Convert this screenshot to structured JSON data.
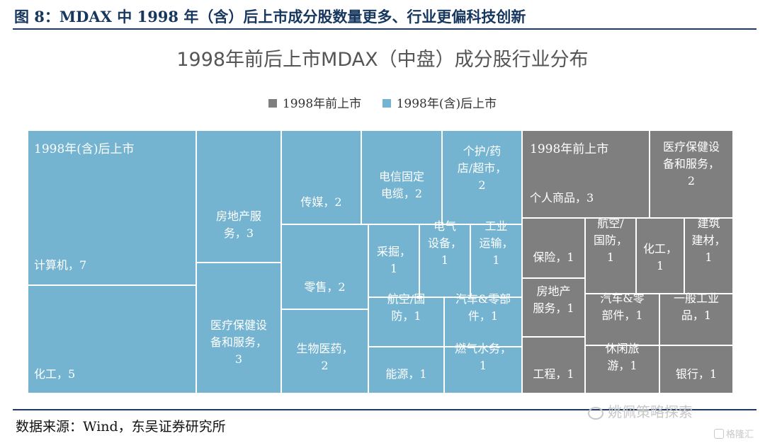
{
  "figure_title": "图 8：MDAX 中 1998 年（含）后上市成分股数量更多、行业更偏科技创新",
  "source": "数据来源：Wind，东吴证券研究所",
  "watermark": "姚佩策略探索",
  "watermark2": "格隆汇",
  "colors": {
    "post": "#74b4d0",
    "pre": "#7f7f7f"
  },
  "chart_data": {
    "type": "treemap",
    "title": "1998年前后上市MDAX（中盘）成分股行业分布",
    "legend": [
      {
        "key": "pre",
        "label": "1998年前上市"
      },
      {
        "key": "post",
        "label": "1998年(含)后上市"
      }
    ],
    "groups": [
      {
        "key": "post",
        "label": "1998年(含)后上市",
        "items": [
          {
            "label": "计算机，7",
            "industry": "计算机",
            "value": 7
          },
          {
            "label": "化工，5",
            "industry": "化工",
            "value": 5
          },
          {
            "label": "房地产服\n务，3",
            "industry": "房地产服务",
            "value": 3
          },
          {
            "label": "医疗保健设\n备和服务，\n3",
            "industry": "医疗保健设备和服务",
            "value": 3
          },
          {
            "label": "传媒，2",
            "industry": "传媒",
            "value": 2
          },
          {
            "label": "电信固定\n电缆，2",
            "industry": "电信固定电缆",
            "value": 2
          },
          {
            "label": "个护/药\n店/超市，\n2",
            "industry": "个护/药店/超市",
            "value": 2
          },
          {
            "label": "零售，2",
            "industry": "零售",
            "value": 2
          },
          {
            "label": "生物医药，\n2",
            "industry": "生物医药",
            "value": 2
          },
          {
            "label": "采掘，\n1",
            "industry": "采掘",
            "value": 1
          },
          {
            "label": "电气\n设备，\n1",
            "industry": "电气设备",
            "value": 1
          },
          {
            "label": "工业\n运输，\n1",
            "industry": "工业运输",
            "value": 1
          },
          {
            "label": "航空/国\n防，1",
            "industry": "航空/国防",
            "value": 1
          },
          {
            "label": "汽车&零部\n件，1",
            "industry": "汽车&零部件",
            "value": 1
          },
          {
            "label": "能源，1",
            "industry": "能源",
            "value": 1
          },
          {
            "label": "燃气水务，\n1",
            "industry": "燃气水务",
            "value": 1
          }
        ]
      },
      {
        "key": "pre",
        "label": "1998年前上市",
        "items": [
          {
            "label": "个人商品，3",
            "industry": "个人商品",
            "value": 3
          },
          {
            "label": "医疗保健设\n备和服务，\n2",
            "industry": "医疗保健设备和服务",
            "value": 2
          },
          {
            "label": "保险，1",
            "industry": "保险",
            "value": 1
          },
          {
            "label": "航空/\n国防，\n1",
            "industry": "航空/国防",
            "value": 1
          },
          {
            "label": "化工，\n1",
            "industry": "化工",
            "value": 1
          },
          {
            "label": "建筑\n建材，\n1",
            "industry": "建筑建材",
            "value": 1
          },
          {
            "label": "房地产\n服务，1",
            "industry": "房地产服务",
            "value": 1
          },
          {
            "label": "汽车&零\n部件，1",
            "industry": "汽车&零部件",
            "value": 1
          },
          {
            "label": "一般工业\n品，1",
            "industry": "一般工业品",
            "value": 1
          },
          {
            "label": "工程，1",
            "industry": "工程",
            "value": 1
          },
          {
            "label": "休闲旅\n游，1",
            "industry": "休闲旅游",
            "value": 1
          },
          {
            "label": "银行，1",
            "industry": "银行",
            "value": 1
          }
        ]
      }
    ]
  }
}
